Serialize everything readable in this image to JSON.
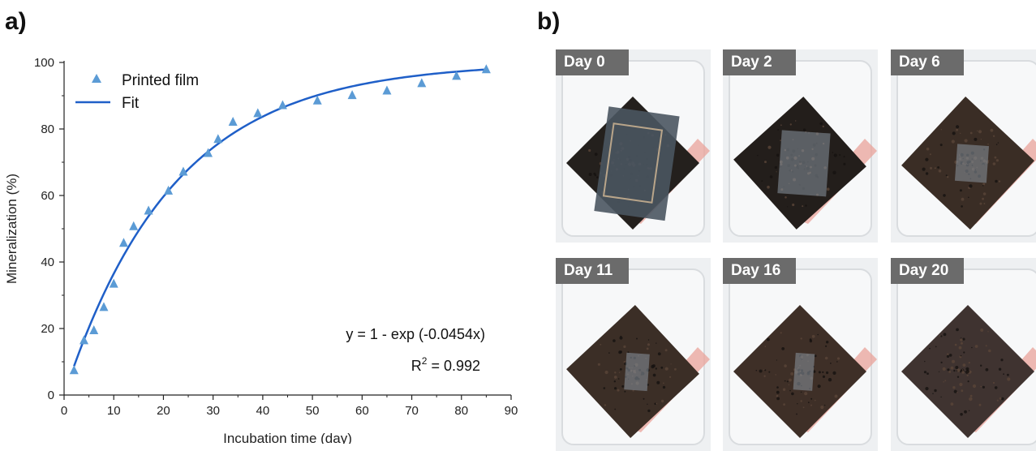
{
  "panels": {
    "a": "a)",
    "b": "b)"
  },
  "chart_data": {
    "type": "scatter",
    "xlabel": "Incubation time (day)",
    "ylabel": "Mineralization (%)",
    "xlim": [
      0,
      90
    ],
    "ylim": [
      0,
      100
    ],
    "xticks": [
      0,
      10,
      20,
      30,
      40,
      50,
      60,
      70,
      80,
      90
    ],
    "yticks": [
      0,
      20,
      40,
      60,
      80,
      100
    ],
    "grid": false,
    "legend_position": "top-left",
    "series": [
      {
        "name": "Printed film",
        "kind": "scatter",
        "marker": "triangle",
        "color": "#5b9bd5",
        "x": [
          2,
          4,
          6,
          8,
          10,
          12,
          14,
          17,
          21,
          24,
          29,
          31,
          34,
          39,
          44,
          51,
          58,
          65,
          72,
          79,
          85
        ],
        "y": [
          7.5,
          16.5,
          19.5,
          26.5,
          33.5,
          45.8,
          50.8,
          55.5,
          61.5,
          67.2,
          72.8,
          77,
          82.2,
          84.8,
          87.2,
          88.6,
          90.2,
          91.6,
          93.8,
          96,
          98
        ]
      },
      {
        "name": "Fit",
        "kind": "line",
        "color": "#1f5fc8",
        "equation": "y = 1 - exp (-0.0454x)",
        "r2_prefix": "R",
        "r2_sup": "2",
        "r2_value": " = 0.992"
      }
    ]
  },
  "photos": [
    {
      "label": "Day 0"
    },
    {
      "label": "Day 2"
    },
    {
      "label": "Day 6"
    },
    {
      "label": "Day 11"
    },
    {
      "label": "Day 16"
    },
    {
      "label": "Day 20"
    }
  ]
}
